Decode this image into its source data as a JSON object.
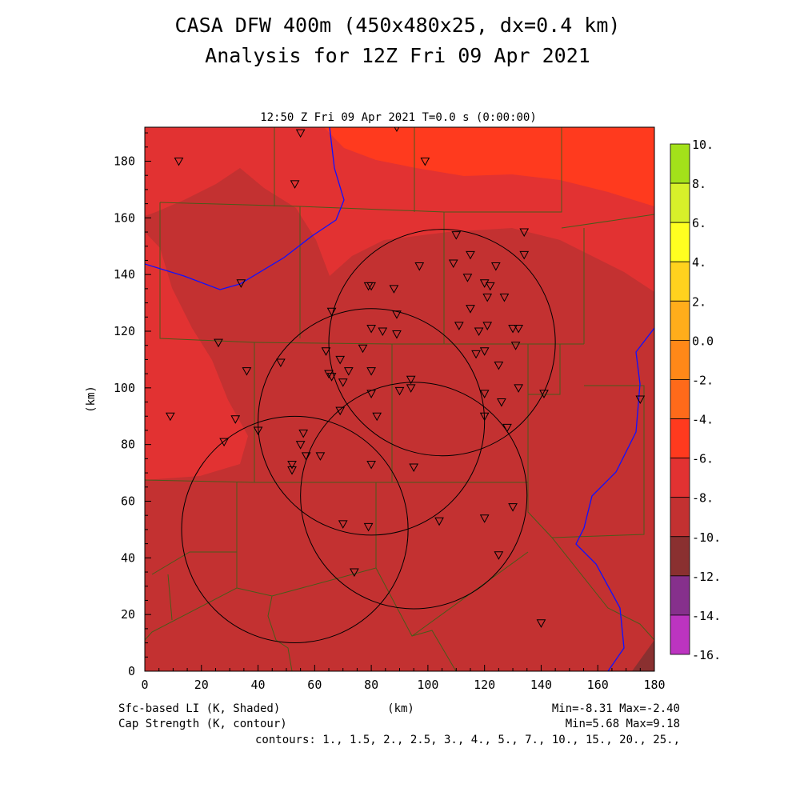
{
  "title": {
    "line1": "CASA DFW 400m (450x480x25, dx=0.4 km)",
    "line2": "Analysis for 12Z Fri 09 Apr 2021"
  },
  "plot_header": "12:50 Z Fri 09 Apr 2021   T=0.0 s (0:00:00)",
  "footer": {
    "shaded_label": "Sfc-based LI (K, Shaded)",
    "contour_label": "Cap Strength (K, contour)",
    "xunit": "(km)",
    "minmax_shaded": "Min=-8.31 Max=-2.40",
    "minmax_contour": "Min=5.68 Max=9.18",
    "contours": "contours: 1., 1.5, 2., 2.5, 3., 4., 5., 7., 10., 15., 20., 25.,"
  },
  "chart_data": {
    "type": "heatmap",
    "xlabel": "(km)",
    "ylabel": "(km)",
    "xlim": [
      0,
      180
    ],
    "ylim": [
      0,
      192
    ],
    "xticks": [
      "0",
      "20",
      "40",
      "60",
      "80",
      "100",
      "120",
      "140",
      "160",
      "180"
    ],
    "yticks": [
      "0",
      "20",
      "40",
      "60",
      "80",
      "100",
      "120",
      "140",
      "160",
      "180"
    ],
    "colorbar": {
      "levels": [
        "10.",
        "8.",
        "6.",
        "4.",
        "2.",
        "0.0",
        "-2.",
        "-4.",
        "-6.",
        "-8.",
        "-10.",
        "-12.",
        "-14.",
        "-16."
      ],
      "colors": [
        "#a3e11a",
        "#d7f02a",
        "#ffff20",
        "#ffd21e",
        "#ffad1b",
        "#ff8818",
        "#ff6a1a",
        "#ff3a1e",
        "#e23232",
        "#c33131",
        "#8a3030",
        "#86308c",
        "#bc34c0",
        "#dc3ee2"
      ]
    },
    "field_colors": {
      "dominant": "#c33131",
      "warmer": "#e23232",
      "warmest": "#ff3a1e",
      "coldest": "#8a3030"
    },
    "radar_rings": [
      {
        "cx": 105,
        "cy": 116,
        "r": 40
      },
      {
        "cx": 80,
        "cy": 88,
        "r": 40
      },
      {
        "cx": 53,
        "cy": 50,
        "r": 40
      },
      {
        "cx": 95,
        "cy": 62,
        "r": 40
      }
    ],
    "stations": [
      [
        12,
        180
      ],
      [
        55,
        190
      ],
      [
        89,
        192
      ],
      [
        99,
        180
      ],
      [
        53,
        172
      ],
      [
        134,
        155
      ],
      [
        110,
        154
      ],
      [
        115,
        147
      ],
      [
        134,
        147
      ],
      [
        97,
        143
      ],
      [
        109,
        144
      ],
      [
        124,
        143
      ],
      [
        114,
        139
      ],
      [
        34,
        137
      ],
      [
        79,
        136
      ],
      [
        80,
        136
      ],
      [
        88,
        135
      ],
      [
        120,
        137
      ],
      [
        122,
        136
      ],
      [
        127,
        132
      ],
      [
        121,
        132
      ],
      [
        115,
        128
      ],
      [
        66,
        127
      ],
      [
        89,
        126
      ],
      [
        111,
        122
      ],
      [
        121,
        122
      ],
      [
        80,
        121
      ],
      [
        84,
        120
      ],
      [
        89,
        119
      ],
      [
        118,
        120
      ],
      [
        130,
        121
      ],
      [
        132,
        121
      ],
      [
        26,
        116
      ],
      [
        64,
        113
      ],
      [
        77,
        114
      ],
      [
        117,
        112
      ],
      [
        120,
        113
      ],
      [
        131,
        115
      ],
      [
        69,
        110
      ],
      [
        48,
        109
      ],
      [
        36,
        106
      ],
      [
        65,
        105
      ],
      [
        72,
        106
      ],
      [
        80,
        106
      ],
      [
        125,
        108
      ],
      [
        66,
        104
      ],
      [
        70,
        102
      ],
      [
        94,
        103
      ],
      [
        94,
        100
      ],
      [
        80,
        98
      ],
      [
        90,
        99
      ],
      [
        120,
        98
      ],
      [
        132,
        100
      ],
      [
        126,
        95
      ],
      [
        141,
        98
      ],
      [
        175,
        96
      ],
      [
        69,
        92
      ],
      [
        9,
        90
      ],
      [
        32,
        89
      ],
      [
        82,
        90
      ],
      [
        120,
        90
      ],
      [
        128,
        86
      ],
      [
        28,
        81
      ],
      [
        40,
        85
      ],
      [
        56,
        84
      ],
      [
        55,
        80
      ],
      [
        57,
        76
      ],
      [
        62,
        76
      ],
      [
        52,
        73
      ],
      [
        52,
        71
      ],
      [
        80,
        73
      ],
      [
        95,
        72
      ],
      [
        130,
        58
      ],
      [
        120,
        54
      ],
      [
        104,
        53
      ],
      [
        70,
        52
      ],
      [
        79,
        51
      ],
      [
        125,
        41
      ],
      [
        74,
        35
      ],
      [
        140,
        17
      ]
    ]
  }
}
